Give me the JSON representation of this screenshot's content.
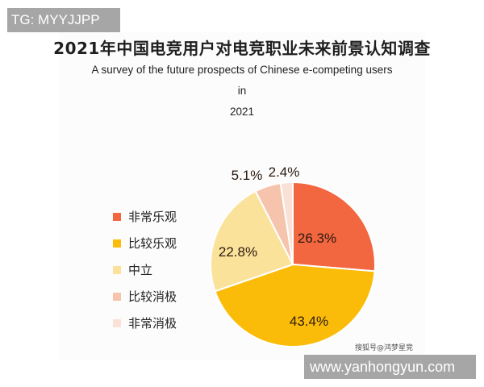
{
  "watermarks": {
    "top_left": "TG: MYYJJPP",
    "bottom_right": "www.yanhongyun.com"
  },
  "source_credit": "搜狐号@鸿梦星竞",
  "chart_data": {
    "type": "pie",
    "title": "2021年中国电竞用户对电竞职业未来前景认知调查",
    "subtitle": "A survey of the future prospects of Chinese e-competing users in 2021",
    "subtitle_lines": [
      "A survey of the future prospects of Chinese e-competing users in",
      "2021"
    ],
    "categories": [
      "非常乐观",
      "比较乐观",
      "中立",
      "比较消极",
      "非常消极"
    ],
    "values": [
      26.3,
      43.4,
      22.8,
      5.1,
      2.4
    ],
    "labels": [
      "26.3%",
      "43.4%",
      "22.8%",
      "5.1%",
      "2.4%"
    ],
    "colors": [
      "#f26640",
      "#fbbc09",
      "#fbe29a",
      "#f6c4ac",
      "#f9e1d8"
    ],
    "legend_position": "left",
    "unit": "%"
  }
}
